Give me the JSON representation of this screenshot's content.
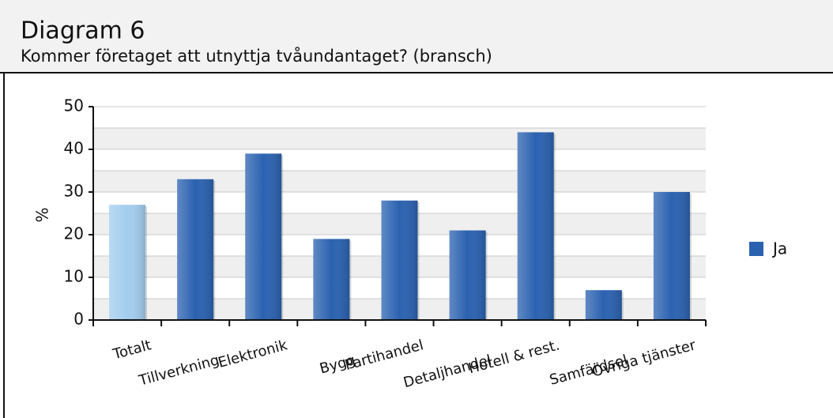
{
  "chart_data": {
    "type": "bar",
    "title": "Diagram 6",
    "subtitle": "Kommer företaget att utnyttja tvåundantaget?  (bransch)",
    "y_label": "%",
    "categories": [
      "Totalt",
      "Tillverkning",
      "Elektronik",
      "Bygg",
      "Partihandel",
      "Detaljhandel",
      "Hotell & rest.",
      "Samfärdsel",
      "Övriga tjänster"
    ],
    "series": [
      {
        "name": "Ja",
        "color": "#2b62b0",
        "values": [
          27,
          33,
          39,
          19,
          28,
          21,
          44,
          7,
          30
        ],
        "bar_colors": [
          "#a3cdee",
          "#2b62b0",
          "#2b62b0",
          "#2b62b0",
          "#2b62b0",
          "#2b62b0",
          "#2b62b0",
          "#2b62b0",
          "#2b62b0"
        ]
      }
    ],
    "ylim": [
      0,
      50
    ],
    "yticks": [
      0,
      10,
      20,
      30,
      40,
      50
    ],
    "grid": true,
    "legend": "right"
  }
}
